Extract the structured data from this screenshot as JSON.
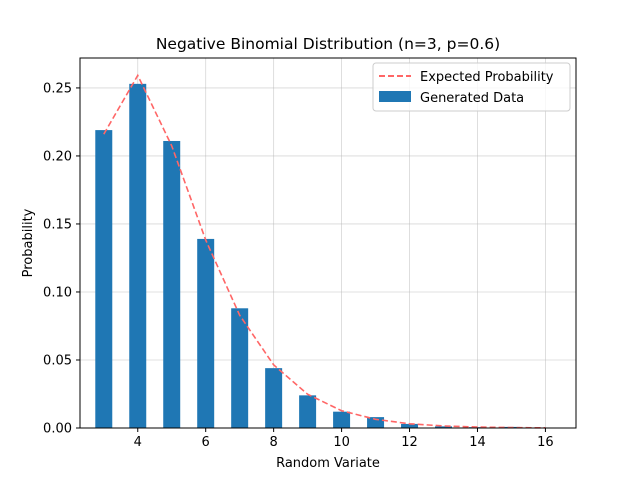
{
  "chart_data": {
    "type": "bar",
    "title": "Negative Binomial Distribution (n=3, p=0.6)",
    "xlabel": "Random Variate",
    "ylabel": "Probability",
    "xlim": [
      2.3,
      16.9
    ],
    "ylim": [
      0,
      0.272
    ],
    "xticks": [
      4,
      6,
      8,
      10,
      12,
      14,
      16
    ],
    "yticks": [
      0.0,
      0.05,
      0.1,
      0.15,
      0.2,
      0.25
    ],
    "ytick_labels": [
      "0.00",
      "0.05",
      "0.10",
      "0.15",
      "0.20",
      "0.25"
    ],
    "grid": true,
    "legend_position": "top-right",
    "series": [
      {
        "name": "Generated Data",
        "kind": "bar",
        "color": "#1f77b4",
        "x": [
          3,
          4,
          5,
          6,
          7,
          8,
          9,
          10,
          11,
          12,
          13,
          14,
          15,
          16
        ],
        "values": [
          0.219,
          0.253,
          0.211,
          0.139,
          0.088,
          0.044,
          0.024,
          0.012,
          0.008,
          0.003,
          0.0012,
          0.0006,
          0.0008,
          0.0002
        ]
      },
      {
        "name": "Expected Probability",
        "kind": "line",
        "style": "dashed",
        "color": "#ff6666",
        "x": [
          3,
          4,
          5,
          6,
          7,
          8,
          9,
          10,
          11,
          12,
          13,
          14,
          15,
          16
        ],
        "values": [
          0.216,
          0.2592,
          0.2074,
          0.1382,
          0.0829,
          0.0464,
          0.0248,
          0.0127,
          0.0064,
          0.0031,
          0.0015,
          0.0007,
          0.0003,
          0.0001
        ]
      }
    ]
  }
}
